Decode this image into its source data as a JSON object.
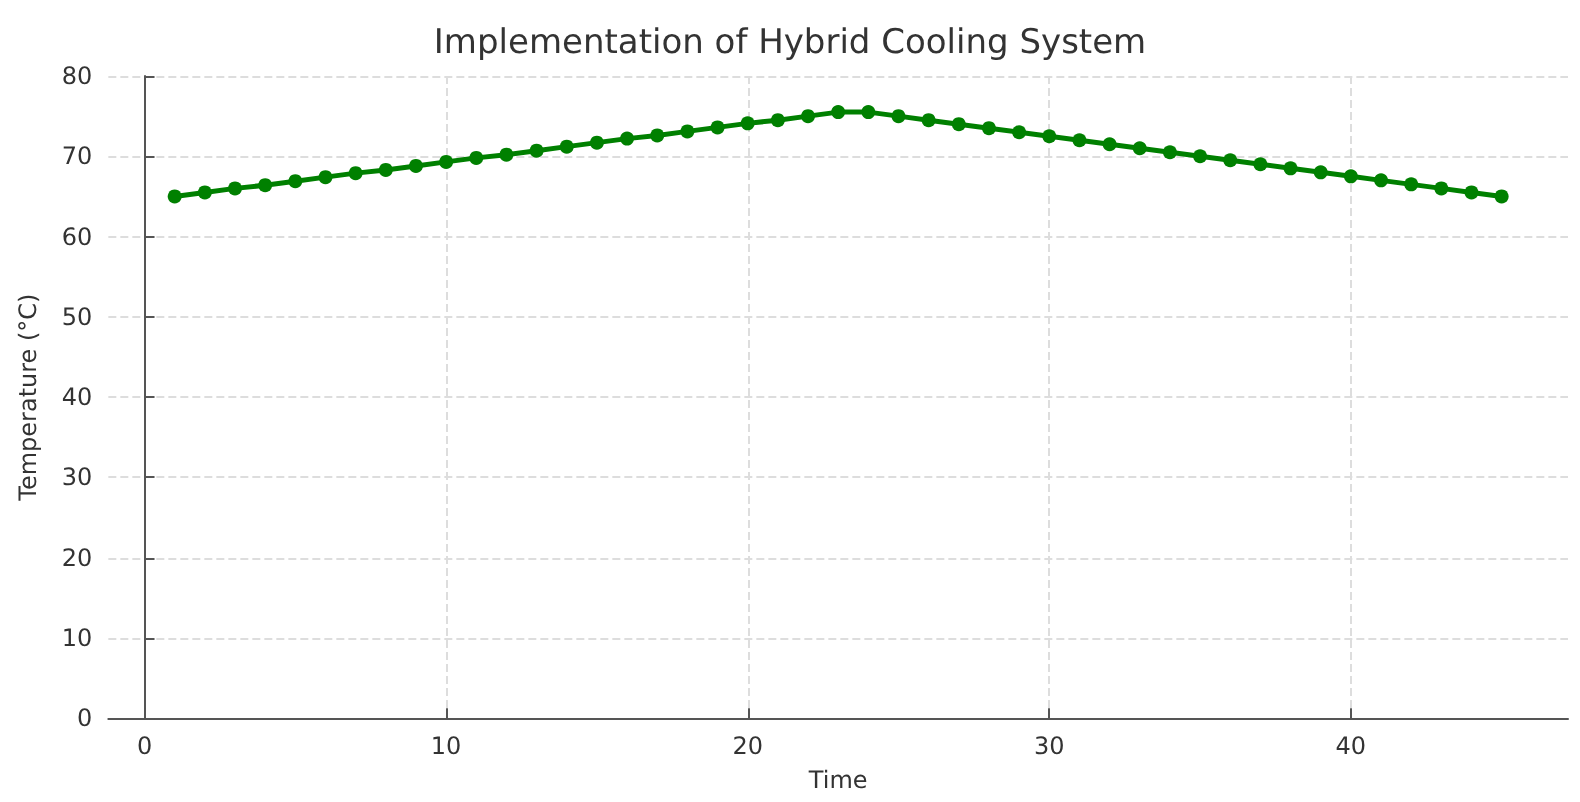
{
  "chart_data": {
    "type": "line",
    "title": "Implementation of Hybrid Cooling System",
    "xlabel": "Time",
    "ylabel": "Temperature (°C)",
    "x": [
      1,
      2,
      3,
      4,
      5,
      6,
      7,
      8,
      9,
      10,
      11,
      12,
      13,
      14,
      15,
      16,
      17,
      18,
      19,
      20,
      21,
      22,
      23,
      24,
      25,
      26,
      27,
      28,
      29,
      30,
      31,
      32,
      33,
      34,
      35,
      36,
      37,
      38,
      39,
      40,
      41,
      42,
      43,
      44,
      45
    ],
    "series": [
      {
        "color": "#008000",
        "values": [
          65,
          65.5,
          66,
          66.4,
          66.9,
          67.4,
          67.9,
          68.3,
          68.8,
          69.3,
          69.8,
          70.2,
          70.7,
          71.2,
          71.7,
          72.2,
          72.6,
          73.1,
          73.6,
          74.1,
          74.5,
          75,
          75.5,
          75.5,
          75,
          74.5,
          74,
          73.5,
          73,
          72.5,
          72,
          71.5,
          71,
          70.5,
          70,
          69.5,
          69,
          68.5,
          68,
          67.5,
          67,
          66.5,
          66,
          65.5,
          65
        ]
      }
    ],
    "xlim": [
      -1.2,
      47.2
    ],
    "xticks": [
      0,
      10,
      20,
      30,
      40
    ],
    "ylim": [
      0,
      80
    ],
    "yticks": [
      0,
      10,
      20,
      30,
      40,
      50,
      60,
      70,
      80
    ],
    "grid": true,
    "marker": "circle",
    "line_style": "solid"
  }
}
